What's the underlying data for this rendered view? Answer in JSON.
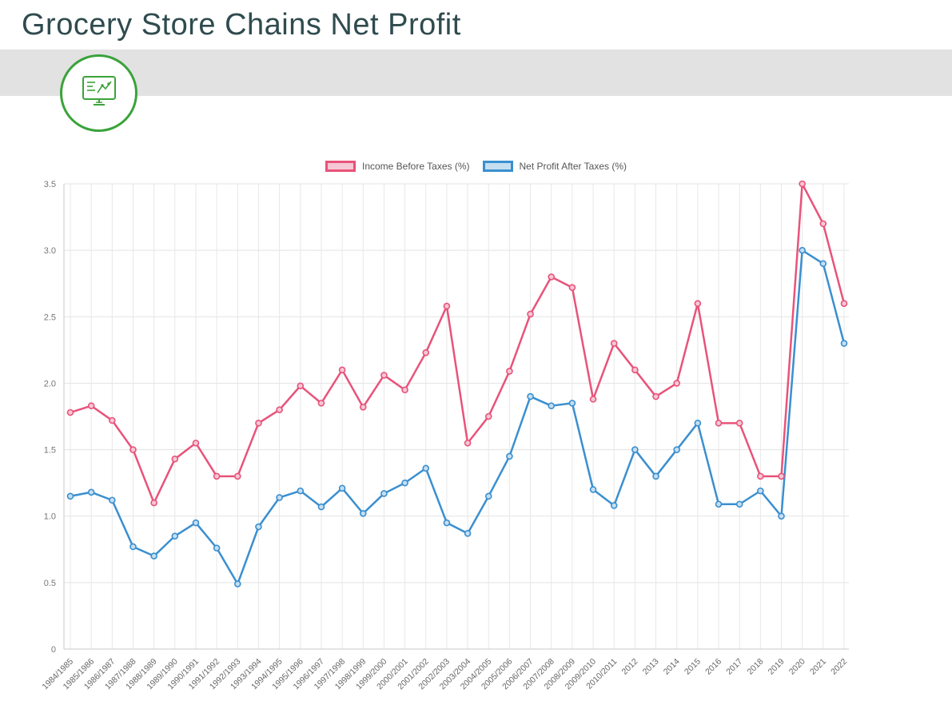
{
  "header": {
    "title": "Grocery Store Chains Net Profit"
  },
  "hero": {
    "icon": "monitor-chart-icon",
    "accent_color": "#3aa33a",
    "band_color": "#e2e2e2",
    "title_color": "#2f4b4e"
  },
  "chart_data": {
    "type": "line",
    "title": "Grocery Store Chains Net Profit",
    "xlabel": "",
    "ylabel": "",
    "ylim": [
      0,
      3.5
    ],
    "y_ticks": [
      "0",
      "0.5",
      "1.0",
      "1.5",
      "2.0",
      "2.5",
      "3.0",
      "3.5"
    ],
    "grid": true,
    "legend_position": "top",
    "categories": [
      "1984/1985",
      "1985/1986",
      "1986/1987",
      "1987/1988",
      "1988/1989",
      "1989/1990",
      "1990/1991",
      "1991/1992",
      "1992/1993",
      "1993/1994",
      "1994/1995",
      "1995/1996",
      "1996/1997",
      "1997/1998",
      "1998/1999",
      "1999/2000",
      "2000/2001",
      "2001/2002",
      "2002/2003",
      "2003/2004",
      "2004/2005",
      "2005/2006",
      "2006/2007",
      "2007/2008",
      "2008/2009",
      "2009/2010",
      "2010/2011",
      "2012",
      "2013",
      "2014",
      "2015",
      "2016",
      "2017",
      "2018",
      "2019",
      "2020",
      "2021",
      "2022"
    ],
    "series": [
      {
        "name": "Income Before Taxes (%)",
        "color": "#e8537a",
        "fill": "#f6c7d4",
        "values": [
          1.78,
          1.83,
          1.72,
          1.5,
          1.1,
          1.43,
          1.55,
          1.3,
          1.3,
          1.7,
          1.8,
          1.98,
          1.85,
          2.1,
          1.82,
          2.06,
          1.95,
          2.23,
          2.58,
          1.55,
          1.75,
          2.09,
          2.52,
          2.8,
          2.72,
          1.88,
          2.3,
          2.1,
          1.9,
          2.0,
          2.6,
          1.7,
          1.7,
          1.3,
          1.3,
          3.5,
          3.2,
          2.6
        ]
      },
      {
        "name": "Net Profit After Taxes (%)",
        "color": "#3a8fd0",
        "fill": "#c5def0",
        "values": [
          1.15,
          1.18,
          1.12,
          0.77,
          0.7,
          0.85,
          0.95,
          0.76,
          0.49,
          0.92,
          1.14,
          1.19,
          1.07,
          1.21,
          1.02,
          1.17,
          1.25,
          1.36,
          0.95,
          0.87,
          1.15,
          1.45,
          1.9,
          1.83,
          1.85,
          1.2,
          1.08,
          1.5,
          1.3,
          1.5,
          1.7,
          1.09,
          1.09,
          1.19,
          1.0,
          3.0,
          2.9,
          2.3
        ]
      }
    ]
  }
}
